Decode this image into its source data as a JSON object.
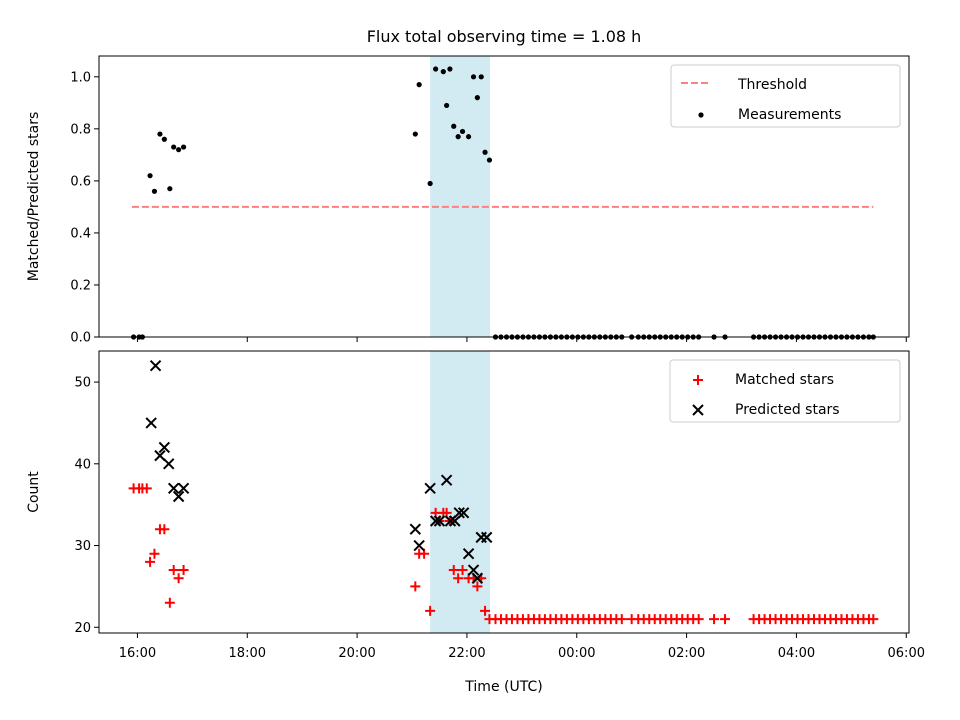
{
  "chart_data": [
    {
      "type": "scatter",
      "title": "Flux total observing time = 1.08 h",
      "xlabel": "",
      "ylabel": "Matched/Predicted stars",
      "x_unit": "hours since 16:00 UTC on first night (as displayed on time axis)",
      "xlim": [
        -0.7,
        14.05
      ],
      "ylim": [
        0,
        1.08
      ],
      "yticks": [
        "0.0",
        "0.2",
        "0.4",
        "0.6",
        "0.8",
        "1.0"
      ],
      "ytick_values": [
        0,
        0.2,
        0.4,
        0.6,
        0.8,
        1.0
      ],
      "shaded_span": [
        5.33,
        6.42
      ],
      "legend": {
        "placement": "upper-right",
        "entries": [
          "Threshold",
          "Measurements"
        ]
      },
      "series": [
        {
          "name": "Threshold",
          "kind": "line",
          "style": "dashed",
          "color": "#ff7f7f",
          "points": [
            [
              -0.1,
              0.5
            ],
            [
              13.4,
              0.5
            ]
          ]
        },
        {
          "name": "Measurements",
          "kind": "scatter",
          "marker": "dot",
          "color": "#000000",
          "points": [
            [
              -0.07,
              0.0
            ],
            [
              0.03,
              0.0
            ],
            [
              0.09,
              0.0
            ],
            [
              0.23,
              0.62
            ],
            [
              0.31,
              0.56
            ],
            [
              0.41,
              0.78
            ],
            [
              0.49,
              0.76
            ],
            [
              0.59,
              0.57
            ],
            [
              0.66,
              0.73
            ],
            [
              0.75,
              0.72
            ],
            [
              0.84,
              0.73
            ],
            [
              5.06,
              0.78
            ],
            [
              5.13,
              0.97
            ],
            [
              5.33,
              0.59
            ],
            [
              5.43,
              1.03
            ],
            [
              5.57,
              1.02
            ],
            [
              5.63,
              0.89
            ],
            [
              5.69,
              1.03
            ],
            [
              5.76,
              0.81
            ],
            [
              5.84,
              0.77
            ],
            [
              5.92,
              0.79
            ],
            [
              6.03,
              0.77
            ],
            [
              6.12,
              1.0
            ],
            [
              6.19,
              0.92
            ],
            [
              6.26,
              1.0
            ],
            [
              6.33,
              0.71
            ],
            [
              6.41,
              0.68
            ],
            [
              6.52,
              0.0
            ],
            [
              6.62,
              0.0
            ],
            [
              6.72,
              0.0
            ],
            [
              6.82,
              0.0
            ],
            [
              6.92,
              0.0
            ],
            [
              7.02,
              0.0
            ],
            [
              7.12,
              0.0
            ],
            [
              7.22,
              0.0
            ],
            [
              7.32,
              0.0
            ],
            [
              7.42,
              0.0
            ],
            [
              7.52,
              0.0
            ],
            [
              7.62,
              0.0
            ],
            [
              7.72,
              0.0
            ],
            [
              7.82,
              0.0
            ],
            [
              7.92,
              0.0
            ],
            [
              8.02,
              0.0
            ],
            [
              8.12,
              0.0
            ],
            [
              8.22,
              0.0
            ],
            [
              8.32,
              0.0
            ],
            [
              8.42,
              0.0
            ],
            [
              8.52,
              0.0
            ],
            [
              8.62,
              0.0
            ],
            [
              8.72,
              0.0
            ],
            [
              8.82,
              0.0
            ],
            [
              9.0,
              0.0
            ],
            [
              9.12,
              0.0
            ],
            [
              9.22,
              0.0
            ],
            [
              9.32,
              0.0
            ],
            [
              9.42,
              0.0
            ],
            [
              9.52,
              0.0
            ],
            [
              9.62,
              0.0
            ],
            [
              9.72,
              0.0
            ],
            [
              9.82,
              0.0
            ],
            [
              9.92,
              0.0
            ],
            [
              10.02,
              0.0
            ],
            [
              10.12,
              0.0
            ],
            [
              10.22,
              0.0
            ],
            [
              10.5,
              0.0
            ],
            [
              10.7,
              0.0
            ],
            [
              11.22,
              0.0
            ],
            [
              11.32,
              0.0
            ],
            [
              11.42,
              0.0
            ],
            [
              11.52,
              0.0
            ],
            [
              11.62,
              0.0
            ],
            [
              11.72,
              0.0
            ],
            [
              11.82,
              0.0
            ],
            [
              11.92,
              0.0
            ],
            [
              12.02,
              0.0
            ],
            [
              12.12,
              0.0
            ],
            [
              12.22,
              0.0
            ],
            [
              12.32,
              0.0
            ],
            [
              12.42,
              0.0
            ],
            [
              12.52,
              0.0
            ],
            [
              12.62,
              0.0
            ],
            [
              12.72,
              0.0
            ],
            [
              12.82,
              0.0
            ],
            [
              12.92,
              0.0
            ],
            [
              13.02,
              0.0
            ],
            [
              13.12,
              0.0
            ],
            [
              13.22,
              0.0
            ],
            [
              13.32,
              0.0
            ],
            [
              13.4,
              0.0
            ]
          ]
        }
      ]
    },
    {
      "type": "scatter",
      "title": "",
      "xlabel": "Time (UTC)",
      "ylabel": "Count",
      "x_unit": "hours since 16:00 UTC on first night (as displayed on time axis)",
      "xlim": [
        -0.7,
        14.05
      ],
      "ylim": [
        19.3,
        53.8
      ],
      "xticks": [
        "16:00",
        "18:00",
        "20:00",
        "22:00",
        "00:00",
        "02:00",
        "04:00",
        "06:00"
      ],
      "xtick_values": [
        0,
        2,
        4,
        6,
        8,
        10,
        12,
        14
      ],
      "yticks": [
        "20",
        "30",
        "40",
        "50"
      ],
      "ytick_values": [
        20,
        30,
        40,
        50
      ],
      "shaded_span": [
        5.33,
        6.42
      ],
      "legend": {
        "placement": "upper-right",
        "entries": [
          "Matched stars",
          "Predicted stars"
        ]
      },
      "series": [
        {
          "name": "Matched stars",
          "kind": "scatter",
          "marker": "plus",
          "color": "#ff0000",
          "points": [
            [
              -0.07,
              37
            ],
            [
              0.03,
              37
            ],
            [
              0.09,
              37
            ],
            [
              0.17,
              37
            ],
            [
              0.23,
              28
            ],
            [
              0.31,
              29
            ],
            [
              0.41,
              32
            ],
            [
              0.49,
              32
            ],
            [
              0.59,
              23
            ],
            [
              0.66,
              27
            ],
            [
              0.75,
              26
            ],
            [
              0.84,
              27
            ],
            [
              5.06,
              25
            ],
            [
              5.13,
              29
            ],
            [
              5.22,
              29
            ],
            [
              5.33,
              22
            ],
            [
              5.43,
              34
            ],
            [
              5.5,
              33
            ],
            [
              5.57,
              34
            ],
            [
              5.63,
              34
            ],
            [
              5.69,
              33
            ],
            [
              5.76,
              27
            ],
            [
              5.84,
              26
            ],
            [
              5.92,
              27
            ],
            [
              6.03,
              26
            ],
            [
              6.12,
              26
            ],
            [
              6.19,
              25
            ],
            [
              6.26,
              26
            ],
            [
              6.33,
              22
            ],
            [
              6.41,
              21
            ],
            [
              6.52,
              21
            ],
            [
              6.62,
              21
            ],
            [
              6.72,
              21
            ],
            [
              6.82,
              21
            ],
            [
              6.92,
              21
            ],
            [
              7.02,
              21
            ],
            [
              7.12,
              21
            ],
            [
              7.22,
              21
            ],
            [
              7.32,
              21
            ],
            [
              7.42,
              21
            ],
            [
              7.52,
              21
            ],
            [
              7.62,
              21
            ],
            [
              7.72,
              21
            ],
            [
              7.82,
              21
            ],
            [
              7.92,
              21
            ],
            [
              8.02,
              21
            ],
            [
              8.12,
              21
            ],
            [
              8.22,
              21
            ],
            [
              8.32,
              21
            ],
            [
              8.42,
              21
            ],
            [
              8.52,
              21
            ],
            [
              8.62,
              21
            ],
            [
              8.72,
              21
            ],
            [
              8.82,
              21
            ],
            [
              9.0,
              21
            ],
            [
              9.12,
              21
            ],
            [
              9.22,
              21
            ],
            [
              9.32,
              21
            ],
            [
              9.42,
              21
            ],
            [
              9.52,
              21
            ],
            [
              9.62,
              21
            ],
            [
              9.72,
              21
            ],
            [
              9.82,
              21
            ],
            [
              9.92,
              21
            ],
            [
              10.02,
              21
            ],
            [
              10.12,
              21
            ],
            [
              10.22,
              21
            ],
            [
              10.5,
              21
            ],
            [
              10.7,
              21
            ],
            [
              11.22,
              21
            ],
            [
              11.32,
              21
            ],
            [
              11.42,
              21
            ],
            [
              11.52,
              21
            ],
            [
              11.62,
              21
            ],
            [
              11.72,
              21
            ],
            [
              11.82,
              21
            ],
            [
              11.92,
              21
            ],
            [
              12.02,
              21
            ],
            [
              12.12,
              21
            ],
            [
              12.22,
              21
            ],
            [
              12.32,
              21
            ],
            [
              12.42,
              21
            ],
            [
              12.52,
              21
            ],
            [
              12.62,
              21
            ],
            [
              12.72,
              21
            ],
            [
              12.82,
              21
            ],
            [
              12.92,
              21
            ],
            [
              13.02,
              21
            ],
            [
              13.12,
              21
            ],
            [
              13.22,
              21
            ],
            [
              13.32,
              21
            ],
            [
              13.4,
              21
            ]
          ]
        },
        {
          "name": "Predicted stars",
          "kind": "scatter",
          "marker": "x",
          "color": "#000000",
          "points": [
            [
              0.25,
              45
            ],
            [
              0.33,
              52
            ],
            [
              0.41,
              41
            ],
            [
              0.49,
              42
            ],
            [
              0.57,
              40
            ],
            [
              0.66,
              37
            ],
            [
              0.75,
              36
            ],
            [
              0.84,
              37
            ],
            [
              5.06,
              32
            ],
            [
              5.13,
              30
            ],
            [
              5.33,
              37
            ],
            [
              5.43,
              33
            ],
            [
              5.5,
              33
            ],
            [
              5.63,
              38
            ],
            [
              5.7,
              33
            ],
            [
              5.78,
              33
            ],
            [
              5.86,
              34
            ],
            [
              5.94,
              34
            ],
            [
              6.03,
              29
            ],
            [
              6.12,
              27
            ],
            [
              6.19,
              26
            ],
            [
              6.26,
              31
            ],
            [
              6.36,
              31
            ]
          ]
        }
      ]
    }
  ]
}
